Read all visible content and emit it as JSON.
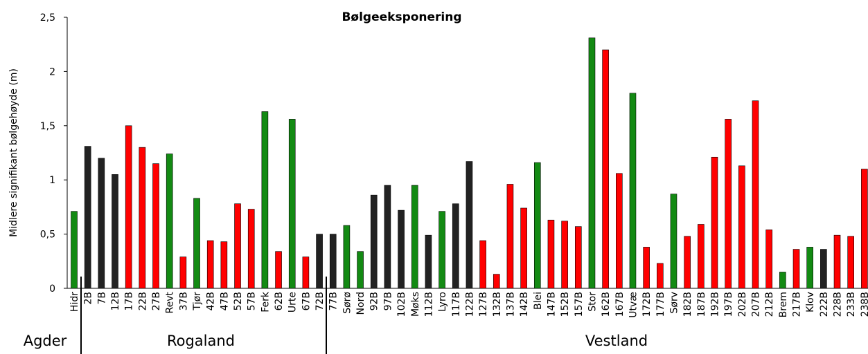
{
  "chart_data": {
    "type": "bar",
    "title": "Bølgeeksponering",
    "y_label": "Midlere signifikant bølgehøyde  (m)",
    "categories": [
      "Hidr",
      "2B",
      "7B",
      "12B",
      "17B",
      "22B",
      "27B",
      "Revt",
      "37B",
      "Tjør",
      "42B",
      "47B",
      "52B",
      "57B",
      "Ferk",
      "62B",
      "Urte",
      "67B",
      "72B",
      "77B",
      "Sørø",
      "Nord",
      "92B",
      "97B",
      "102B",
      "Møks",
      "112B",
      "Lyro",
      "117B",
      "122B",
      "127B",
      "132B",
      "137B",
      "142B",
      "Blei",
      "147B",
      "152B",
      "157B",
      "Stor",
      "162B",
      "167B",
      "Utvæ",
      "172B",
      "177B",
      "Sørv",
      "182B",
      "187B",
      "192B",
      "197B",
      "202B",
      "207B",
      "212B",
      "Brem",
      "217B",
      "Klov",
      "222B",
      "228B",
      "233B",
      "238B"
    ],
    "values": [
      0.71,
      1.31,
      1.2,
      1.05,
      1.5,
      1.3,
      1.15,
      1.24,
      0.29,
      0.83,
      0.44,
      0.43,
      0.78,
      0.73,
      1.63,
      0.34,
      1.56,
      0.29,
      0.5,
      0.5,
      0.58,
      0.34,
      0.86,
      0.95,
      0.72,
      0.95,
      0.49,
      0.71,
      0.78,
      1.17,
      0.44,
      0.13,
      0.96,
      0.74,
      1.16,
      0.63,
      0.62,
      0.57,
      2.31,
      2.2,
      1.06,
      1.8,
      0.38,
      0.23,
      0.87,
      0.48,
      0.59,
      1.21,
      1.56,
      1.13,
      1.73,
      0.54,
      0.15,
      0.36,
      0.38,
      0.36,
      0.49,
      0.48,
      1.1
    ],
    "colors": [
      "#138a13",
      "#222222",
      "#222222",
      "#222222",
      "#ff0000",
      "#ff0000",
      "#ff0000",
      "#138a13",
      "#ff0000",
      "#138a13",
      "#ff0000",
      "#ff0000",
      "#ff0000",
      "#ff0000",
      "#138a13",
      "#ff0000",
      "#138a13",
      "#ff0000",
      "#222222",
      "#222222",
      "#138a13",
      "#138a13",
      "#222222",
      "#222222",
      "#222222",
      "#138a13",
      "#222222",
      "#138a13",
      "#222222",
      "#222222",
      "#ff0000",
      "#ff0000",
      "#ff0000",
      "#ff0000",
      "#138a13",
      "#ff0000",
      "#ff0000",
      "#ff0000",
      "#138a13",
      "#ff0000",
      "#ff0000",
      "#138a13",
      "#ff0000",
      "#ff0000",
      "#138a13",
      "#ff0000",
      "#ff0000",
      "#ff0000",
      "#ff0000",
      "#ff0000",
      "#ff0000",
      "#ff0000",
      "#138a13",
      "#ff0000",
      "#138a13",
      "#222222",
      "#ff0000",
      "#ff0000",
      "#ff0000"
    ],
    "regions": [
      "Agder",
      "Rogaland",
      "Vestland"
    ],
    "ylim": [
      0,
      2.5
    ],
    "yticks": [
      0,
      {
        "value": 0.5,
        "label": "0,5"
      },
      1,
      {
        "value": 1.5,
        "label": "1,5"
      },
      2,
      {
        "value": 2.5,
        "label": "2,5"
      }
    ]
  }
}
